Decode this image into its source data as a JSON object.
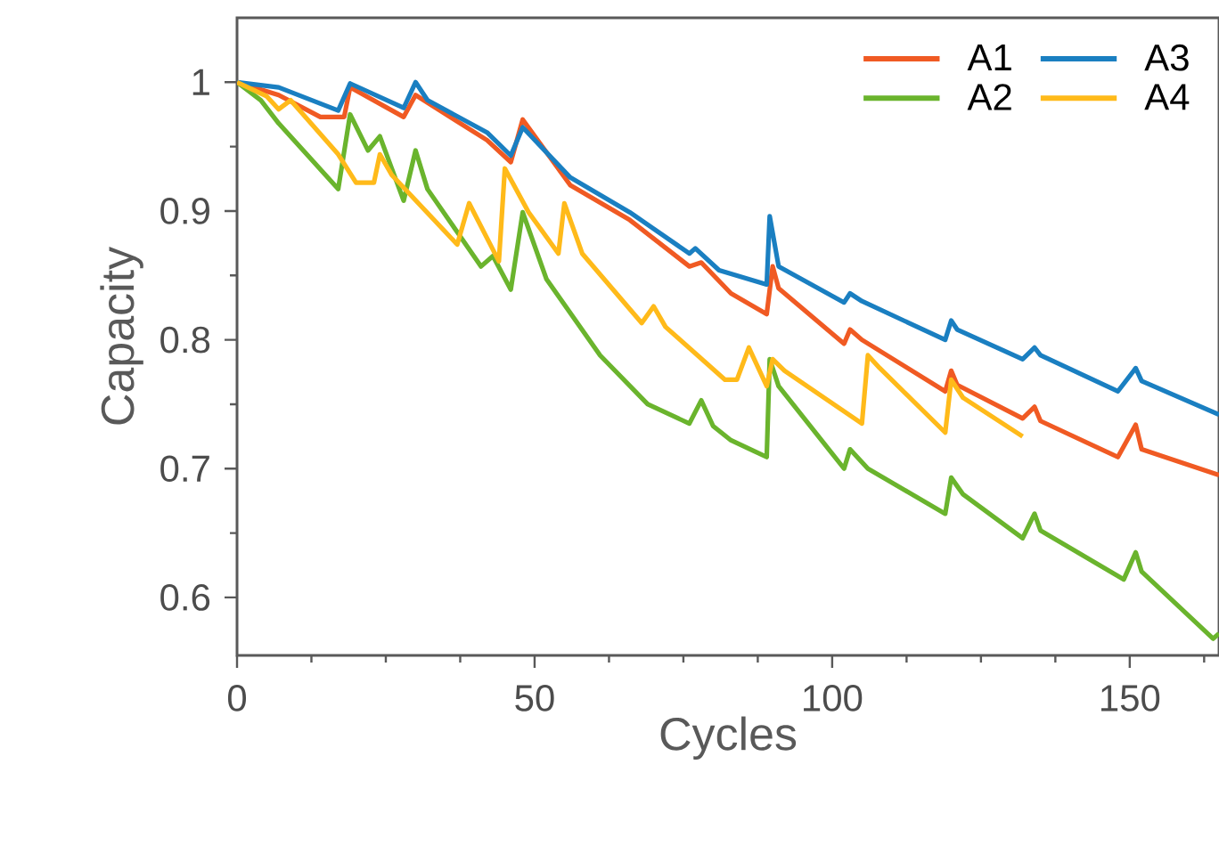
{
  "chart_data": {
    "type": "line",
    "xlabel": "Cycles",
    "ylabel": "Capacity",
    "xlim": [
      0,
      165
    ],
    "ylim": [
      0.555,
      1.05
    ],
    "xticks": [
      0,
      {
        "value": 12.5,
        "label": null
      },
      {
        "value": 25,
        "label": null
      },
      {
        "value": 37.5,
        "label": null
      },
      50,
      {
        "value": 62.5,
        "label": null
      },
      {
        "value": 75,
        "label": null
      },
      {
        "value": 87.5,
        "label": null
      },
      100,
      {
        "value": 112.5,
        "label": null
      },
      {
        "value": 125,
        "label": null
      },
      {
        "value": 137.5,
        "label": null
      },
      150,
      {
        "value": 162.5,
        "label": null
      }
    ],
    "yticks": [
      {
        "value": 0.6,
        "label": "0.6"
      },
      {
        "value": 0.65,
        "label": null
      },
      {
        "value": 0.7,
        "label": "0.7"
      },
      {
        "value": 0.75,
        "label": null
      },
      {
        "value": 0.8,
        "label": "0.8"
      },
      {
        "value": 0.85,
        "label": null
      },
      {
        "value": 0.9,
        "label": "0.9"
      },
      {
        "value": 0.95,
        "label": null
      },
      1
    ],
    "grid": false,
    "legend": "top right",
    "marker": "none",
    "line_style": "solid",
    "series": [
      {
        "name": "A1",
        "color": "#f05a23",
        "x": [
          0,
          7,
          14,
          18,
          19,
          28,
          30,
          42,
          46,
          48,
          56,
          66,
          76,
          78,
          83,
          89,
          90,
          91,
          102,
          103,
          105,
          119,
          120,
          121,
          132,
          134,
          135,
          148,
          151,
          152,
          165
        ],
        "values": [
          1.0,
          0.99,
          0.973,
          0.973,
          0.996,
          0.973,
          0.99,
          0.955,
          0.938,
          0.971,
          0.92,
          0.893,
          0.857,
          0.86,
          0.836,
          0.82,
          0.857,
          0.84,
          0.797,
          0.808,
          0.8,
          0.76,
          0.776,
          0.765,
          0.739,
          0.748,
          0.737,
          0.709,
          0.734,
          0.715,
          0.695
        ]
      },
      {
        "name": "A2",
        "color": "#6ab42d",
        "x": [
          0,
          4,
          7,
          17,
          19,
          22,
          24,
          28,
          30,
          32,
          41,
          43,
          46,
          48,
          52,
          61,
          69,
          76,
          78,
          80,
          83,
          89,
          89.5,
          91,
          102,
          103,
          106,
          119,
          120,
          122,
          132,
          134,
          135,
          149,
          151,
          152,
          164,
          165
        ],
        "values": [
          1.0,
          0.986,
          0.968,
          0.917,
          0.975,
          0.947,
          0.958,
          0.908,
          0.947,
          0.917,
          0.857,
          0.865,
          0.839,
          0.899,
          0.847,
          0.788,
          0.75,
          0.735,
          0.753,
          0.733,
          0.722,
          0.709,
          0.785,
          0.764,
          0.7,
          0.715,
          0.7,
          0.665,
          0.693,
          0.68,
          0.646,
          0.665,
          0.652,
          0.614,
          0.635,
          0.62,
          0.568,
          0.572
        ]
      },
      {
        "name": "A3",
        "color": "#1a7fc1",
        "x": [
          0,
          7,
          17,
          19,
          28,
          30,
          32,
          42,
          46,
          48,
          56,
          66,
          76,
          77,
          81,
          89,
          89.5,
          91,
          102,
          103,
          105,
          119,
          120,
          121,
          132,
          134,
          135,
          148,
          151,
          152,
          165
        ],
        "values": [
          1.0,
          0.996,
          0.978,
          0.999,
          0.98,
          1.0,
          0.986,
          0.961,
          0.943,
          0.965,
          0.926,
          0.899,
          0.867,
          0.871,
          0.854,
          0.843,
          0.896,
          0.857,
          0.829,
          0.836,
          0.83,
          0.8,
          0.815,
          0.808,
          0.785,
          0.794,
          0.788,
          0.76,
          0.778,
          0.768,
          0.742
        ]
      },
      {
        "name": "A4",
        "color": "#ffba1a",
        "x": [
          0,
          5,
          7,
          9,
          17,
          20,
          23,
          24,
          26,
          37,
          39,
          44,
          45,
          49,
          54,
          55,
          58,
          68,
          70,
          72,
          82,
          84,
          86,
          89,
          90,
          92,
          105,
          106,
          108,
          119,
          120,
          122,
          132
        ],
        "values": [
          1.0,
          0.989,
          0.979,
          0.986,
          0.944,
          0.922,
          0.922,
          0.944,
          0.928,
          0.874,
          0.906,
          0.861,
          0.933,
          0.899,
          0.867,
          0.906,
          0.867,
          0.813,
          0.826,
          0.81,
          0.769,
          0.769,
          0.794,
          0.764,
          0.785,
          0.776,
          0.735,
          0.788,
          0.778,
          0.728,
          0.769,
          0.755,
          0.725
        ]
      }
    ]
  }
}
